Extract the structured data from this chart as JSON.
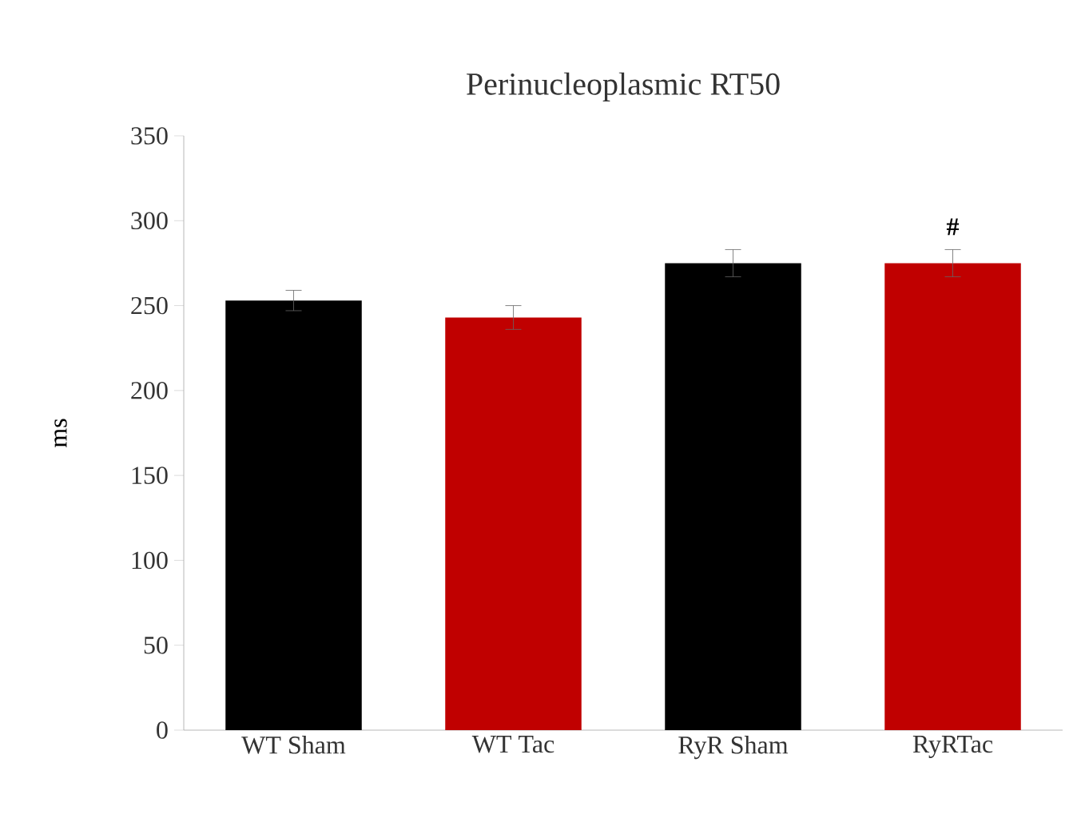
{
  "chart_data": {
    "type": "bar",
    "title": "Perinucleoplasmic  RT50",
    "ylabel": "ms",
    "categories": [
      "WT Sham",
      "WT Tac",
      "RyR Sham",
      "RyRTac"
    ],
    "values": [
      253,
      243,
      275,
      275
    ],
    "errors": [
      6,
      7,
      8,
      8
    ],
    "colors": [
      "#000000",
      "#c00000",
      "#000000",
      "#c00000"
    ],
    "ylim": [
      0,
      350
    ],
    "yticks": [
      0,
      50,
      100,
      150,
      200,
      250,
      300,
      350
    ],
    "annotations": [
      "#"
    ]
  }
}
